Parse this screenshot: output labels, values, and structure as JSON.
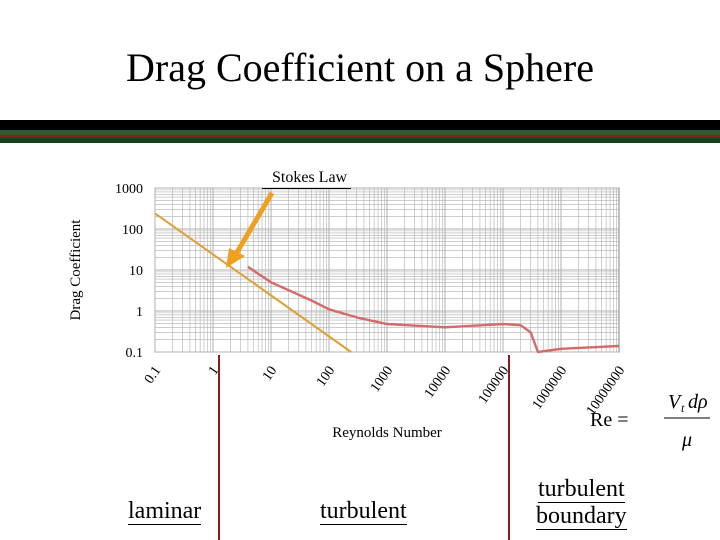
{
  "slide": {
    "title": "Drag Coefficient on a Sphere",
    "annotation": "Stokes Law",
    "regimes": [
      "laminar",
      "turbulent",
      "turbulent",
      "boundary"
    ],
    "formula": {
      "lhs": "Re =",
      "numerator_symbol": "V",
      "numerator_subscript": "t",
      "numerator_rest": "dρ",
      "denominator": "μ"
    }
  },
  "colors": {
    "drag_curve": "#d46a6a",
    "stokes_line": "#e0a030",
    "arrow": "#f0a020",
    "regime_divider": "#8a1c1c",
    "grid": "#b0b0b0"
  },
  "chart_data": {
    "type": "line",
    "xlabel": "Reynolds Number",
    "ylabel": "Drag Coefficient",
    "xscale": "log",
    "yscale": "log",
    "xlim": [
      0.1,
      10000000
    ],
    "ylim": [
      0.1,
      1000
    ],
    "x_ticks": [
      "0.1",
      "1",
      "10",
      "100",
      "1000",
      "10000",
      "100000",
      "1000000",
      "10000000"
    ],
    "y_ticks": [
      "1000",
      "100",
      "10",
      "1",
      "0.1"
    ],
    "grid": true,
    "series": [
      {
        "style": "measured",
        "x": [
          4,
          10,
          50,
          100,
          300,
          1000,
          10000,
          100000,
          200000,
          300000,
          400000,
          1000000,
          10000000
        ],
        "y": [
          12,
          5,
          1.8,
          1.1,
          0.7,
          0.48,
          0.4,
          0.48,
          0.45,
          0.3,
          0.1,
          0.12,
          0.14
        ]
      },
      {
        "style": "stokes",
        "x": [
          0.1,
          240
        ],
        "y": [
          240,
          0.1
        ]
      }
    ]
  }
}
